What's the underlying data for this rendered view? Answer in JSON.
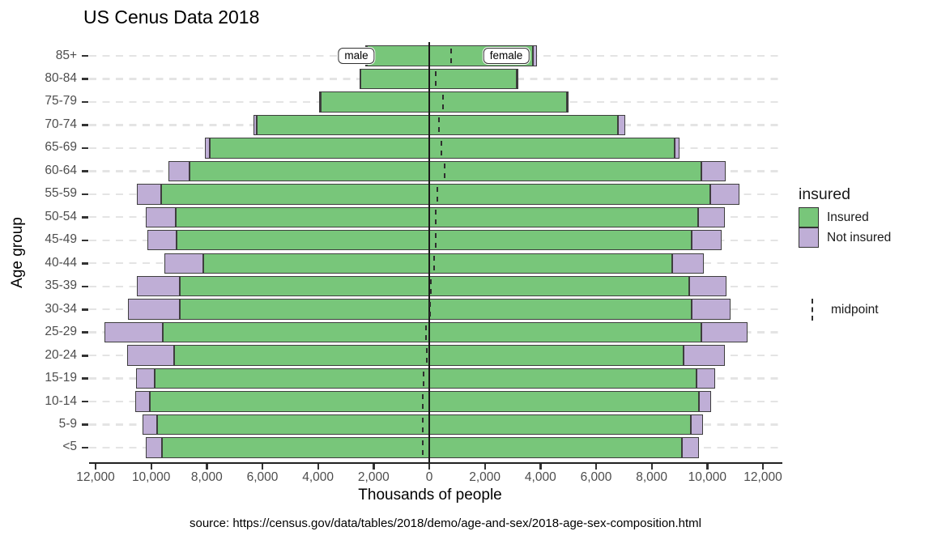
{
  "title": "US Cenus Data 2018",
  "annotations": {
    "male": "male",
    "female": "female"
  },
  "axes": {
    "x_label": "Thousands of people",
    "y_label": "Age group",
    "x_ticks": [
      {
        "value": -12000,
        "label": "12,000"
      },
      {
        "value": -10000,
        "label": "10,000"
      },
      {
        "value": -8000,
        "label": "8,000"
      },
      {
        "value": -6000,
        "label": "6,000"
      },
      {
        "value": -4000,
        "label": "4,000"
      },
      {
        "value": -2000,
        "label": "2,000"
      },
      {
        "value": 0,
        "label": "0"
      },
      {
        "value": 2000,
        "label": "2,000"
      },
      {
        "value": 4000,
        "label": "4,000"
      },
      {
        "value": 6000,
        "label": "6,000"
      },
      {
        "value": 8000,
        "label": "8,000"
      },
      {
        "value": 10000,
        "label": "10,000"
      },
      {
        "value": 12000,
        "label": "12,000"
      }
    ]
  },
  "legend": {
    "title": "insured",
    "items": [
      {
        "label": "Insured",
        "color": "#78C67A"
      },
      {
        "label": "Not insured",
        "color": "#BFAED6"
      }
    ],
    "midpoint_label": "midpoint"
  },
  "source": "source: https://census.gov/data/tables/2018/demo/age-and-sex/2018-age-sex-composition.html",
  "colors": {
    "insured": "#78C67A",
    "not_insured": "#BFAED6",
    "bar_border": "#3E3E3E",
    "gridline": "#E4E4E4",
    "axis_text": "#4D4D4D"
  },
  "chart_data": {
    "type": "bar",
    "subtype": "population-pyramid-stacked-horizontal",
    "title": "US Cenus Data 2018",
    "xlabel": "Thousands of people",
    "ylabel": "Age group",
    "unit": "thousands of people",
    "x_range_each_side": [
      0,
      12000
    ],
    "grid": "horizontal-dashed",
    "legend_position": "right",
    "categories": [
      "85+",
      "80-84",
      "75-79",
      "70-74",
      "65-69",
      "60-64",
      "55-59",
      "50-54",
      "45-49",
      "40-44",
      "35-39",
      "30-34",
      "25-29",
      "20-24",
      "15-19",
      "10-14",
      "5-9",
      "<5"
    ],
    "series": [
      {
        "name": "male Insured",
        "side": "male",
        "status": "Insured",
        "values": [
          2250,
          2480,
          3900,
          6200,
          7890,
          8620,
          9640,
          9110,
          9080,
          8130,
          8960,
          8970,
          9580,
          9170,
          9870,
          10050,
          9790,
          9610
        ]
      },
      {
        "name": "male Not insured",
        "side": "male",
        "status": "Not insured",
        "values": [
          40,
          30,
          60,
          120,
          170,
          760,
          870,
          1090,
          1060,
          1390,
          1560,
          1870,
          2090,
          1700,
          670,
          520,
          520,
          580
        ]
      },
      {
        "name": "female Insured",
        "side": "female",
        "status": "Insured",
        "values": [
          3730,
          3140,
          4950,
          6780,
          8820,
          9790,
          10120,
          9660,
          9450,
          8740,
          9340,
          9440,
          9790,
          9150,
          9610,
          9710,
          9400,
          9090
        ]
      },
      {
        "name": "female Not insured",
        "side": "female",
        "status": "Not insured",
        "values": [
          150,
          30,
          60,
          260,
          190,
          870,
          1030,
          970,
          1070,
          1120,
          1360,
          1400,
          1660,
          1490,
          660,
          440,
          450,
          620
        ]
      }
    ],
    "midpoint": [
      780,
      240,
      490,
      340,
      440,
      560,
      290,
      225,
      225,
      170,
      50,
      20,
      -125,
      -97,
      -195,
      -225,
      -240,
      -240
    ]
  }
}
